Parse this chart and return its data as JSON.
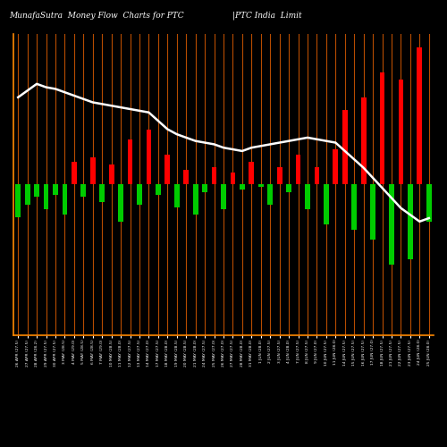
{
  "title_left": "MunafaSutra  Money Flow  Charts for PTC",
  "title_right": "|PTC India  Limit",
  "background_color": "#000000",
  "bar_color_positive": "#ff0000",
  "bar_color_negative": "#00cc00",
  "line_color": "#ffffff",
  "line_width": 1.8,
  "spine_color": "#ff8800",
  "categories": [
    "26 APR (27.5)",
    "27 APR (27.5)",
    "28 APR (28.2)",
    "29 APR (27.5)",
    "30 APR (27.5)",
    "3 MAY (28.5)",
    "4 MAY (29.0)",
    "5 MAY (28.5)",
    "6 MAY (28.5)",
    "7 MAY (29.0)",
    "10 MAY (28.5)",
    "11 MAY (28.0)",
    "12 MAY (27.5)",
    "13 MAY (27.5)",
    "14 MAY (27.0)",
    "17 MAY (27.5)",
    "18 MAY (28.0)",
    "19 MAY (28.5)",
    "20 MAY (28.5)",
    "21 MAY (28.0)",
    "24 MAY (27.5)",
    "25 MAY (27.0)",
    "26 MAY (27.0)",
    "27 MAY (27.5)",
    "28 MAY (28.0)",
    "31 MAY (28.0)",
    "1 JUN (28.0)",
    "2 JUN (27.5)",
    "3 JUN (27.5)",
    "4 JUN (28.0)",
    "7 JUN (27.5)",
    "8 JUN (27.5)",
    "9 JUN (27.0)",
    "10 JUN (27.5)",
    "11 JUN (28.0)",
    "14 JUN (27.5)",
    "15 JUN (27.5)",
    "16 JUN (27.5)",
    "17 JUN (27.0)",
    "18 JUN (27.5)",
    "21 JUN (27.5)",
    "22 JUN (27.5)",
    "23 JUN (27.5)",
    "24 JUN (28.0)",
    "25 JUN (28.0)"
  ],
  "bar_values": [
    -13,
    -8,
    -5,
    -10,
    -4,
    -12,
    9,
    -5,
    11,
    -7,
    8,
    -15,
    18,
    -8,
    22,
    -4,
    12,
    -9,
    6,
    -12,
    -3,
    7,
    -10,
    5,
    -2,
    9,
    -1,
    -8,
    7,
    -3,
    12,
    -10,
    7,
    -16,
    14,
    30,
    -18,
    35,
    -22,
    45,
    -32,
    42,
    -30,
    55,
    -15
  ],
  "line_values": [
    92,
    96,
    100,
    98,
    97,
    95,
    93,
    91,
    89,
    88,
    87,
    86,
    85,
    84,
    83,
    78,
    73,
    70,
    68,
    66,
    65,
    64,
    62,
    61,
    60,
    62,
    63,
    64,
    65,
    66,
    67,
    68,
    67,
    66,
    65,
    60,
    55,
    50,
    44,
    38,
    32,
    26,
    22,
    18,
    20
  ]
}
